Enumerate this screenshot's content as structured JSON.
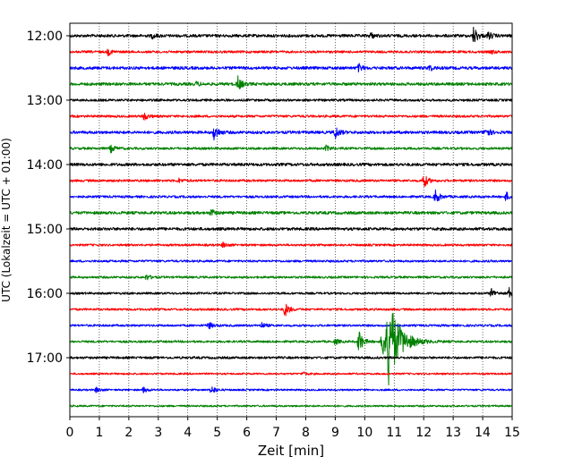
{
  "chart_data": {
    "type": "line",
    "chart_kind": "helicorder",
    "xlabel": "Zeit  [min]",
    "ylabel": "UTC (Lokalzeit = UTC + 01:00)",
    "x_ticks": [
      0,
      1,
      2,
      3,
      4,
      5,
      6,
      7,
      8,
      9,
      10,
      11,
      12,
      13,
      14,
      15
    ],
    "xlim": [
      0,
      15
    ],
    "x_grid": "dotted vertical at every minute",
    "y_tick_labels": [
      "12:00",
      "13:00",
      "14:00",
      "15:00",
      "16:00",
      "17:00"
    ],
    "row_interval_minutes": 15,
    "row_start_times": [
      "12:00",
      "12:15",
      "12:30",
      "12:45",
      "13:00",
      "13:15",
      "13:30",
      "13:45",
      "14:00",
      "14:15",
      "14:30",
      "14:45",
      "15:00",
      "15:15",
      "15:30",
      "15:45",
      "16:00",
      "16:15",
      "16:30",
      "16:45",
      "17:00",
      "17:15",
      "17:30",
      "17:45"
    ],
    "color_cycle": [
      "#000000",
      "#ff0000",
      "#0000ff",
      "#008000"
    ],
    "rows": [
      {
        "row": 0,
        "color": "#000000",
        "noise": 1.6,
        "events": [
          {
            "t": 2.8,
            "amp": 2.5
          },
          {
            "t": 10.2,
            "amp": 3
          },
          {
            "t": 13.7,
            "amp": 10
          },
          {
            "t": 14.2,
            "amp": 4
          }
        ]
      },
      {
        "row": 1,
        "color": "#ff0000",
        "noise": 1.3,
        "events": [
          {
            "t": 1.3,
            "amp": 3.5
          },
          {
            "t": 14.3,
            "amp": 2
          }
        ]
      },
      {
        "row": 2,
        "color": "#0000ff",
        "noise": 1.6,
        "events": [
          {
            "t": 9.8,
            "amp": 4
          },
          {
            "t": 12.2,
            "amp": 3
          }
        ]
      },
      {
        "row": 3,
        "color": "#008000",
        "noise": 1.6,
        "events": [
          {
            "t": 5.7,
            "amp": 8
          },
          {
            "t": 4.3,
            "amp": 2
          }
        ]
      },
      {
        "row": 4,
        "color": "#000000",
        "noise": 1.3,
        "events": []
      },
      {
        "row": 5,
        "color": "#ff0000",
        "noise": 1.3,
        "events": [
          {
            "t": 2.5,
            "amp": 5
          }
        ]
      },
      {
        "row": 6,
        "color": "#0000ff",
        "noise": 1.6,
        "events": [
          {
            "t": 4.9,
            "amp": 9
          },
          {
            "t": 9.0,
            "amp": 7
          },
          {
            "t": 14.1,
            "amp": 6
          }
        ]
      },
      {
        "row": 7,
        "color": "#008000",
        "noise": 1.3,
        "events": [
          {
            "t": 1.4,
            "amp": 4
          },
          {
            "t": 8.7,
            "amp": 3
          }
        ]
      },
      {
        "row": 8,
        "color": "#000000",
        "noise": 1.6,
        "events": []
      },
      {
        "row": 9,
        "color": "#ff0000",
        "noise": 1.3,
        "events": [
          {
            "t": 3.7,
            "amp": 2
          },
          {
            "t": 12.0,
            "amp": 8
          }
        ]
      },
      {
        "row": 10,
        "color": "#0000ff",
        "noise": 1.3,
        "events": [
          {
            "t": 12.4,
            "amp": 8
          },
          {
            "t": 14.8,
            "amp": 5
          }
        ]
      },
      {
        "row": 11,
        "color": "#008000",
        "noise": 1.6,
        "events": [
          {
            "t": 4.8,
            "amp": 4
          }
        ]
      },
      {
        "row": 12,
        "color": "#000000",
        "noise": 1.6,
        "events": []
      },
      {
        "row": 13,
        "color": "#ff0000",
        "noise": 1.2,
        "events": [
          {
            "t": 5.2,
            "amp": 3
          }
        ]
      },
      {
        "row": 14,
        "color": "#0000ff",
        "noise": 1.2,
        "events": []
      },
      {
        "row": 15,
        "color": "#008000",
        "noise": 1.2,
        "events": [
          {
            "t": 2.6,
            "amp": 3
          }
        ]
      },
      {
        "row": 16,
        "color": "#000000",
        "noise": 1.2,
        "events": [
          {
            "t": 14.3,
            "amp": 5
          },
          {
            "t": 14.9,
            "amp": 6
          }
        ]
      },
      {
        "row": 17,
        "color": "#ff0000",
        "noise": 1.2,
        "events": [
          {
            "t": 7.3,
            "amp": 8
          }
        ]
      },
      {
        "row": 18,
        "color": "#0000ff",
        "noise": 1.2,
        "events": [
          {
            "t": 4.7,
            "amp": 4
          },
          {
            "t": 6.5,
            "amp": 3
          }
        ]
      },
      {
        "row": 19,
        "color": "#008000",
        "noise": 1.2,
        "events": [
          {
            "t": 9.0,
            "amp": 3
          },
          {
            "t": 9.8,
            "amp": 14
          },
          {
            "t": 10.6,
            "amp": 20
          },
          {
            "t": 10.8,
            "amp": 40
          }
        ]
      },
      {
        "row": 20,
        "color": "#000000",
        "noise": 1.3,
        "events": []
      },
      {
        "row": 21,
        "color": "#ff0000",
        "noise": 1.0,
        "events": [
          {
            "t": 7.9,
            "amp": 2
          }
        ]
      },
      {
        "row": 22,
        "color": "#0000ff",
        "noise": 1.0,
        "events": [
          {
            "t": 0.9,
            "amp": 3
          },
          {
            "t": 2.5,
            "amp": 3
          },
          {
            "t": 4.8,
            "amp": 5
          }
        ]
      },
      {
        "row": 23,
        "color": "#008000",
        "noise": 1.0,
        "events": []
      }
    ]
  }
}
